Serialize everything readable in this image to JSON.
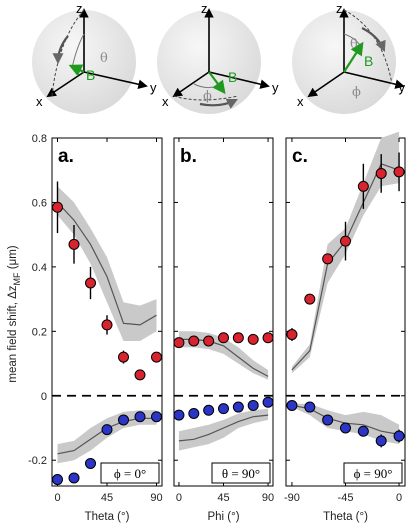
{
  "colors": {
    "red_marker": "#d9232e",
    "blue_marker": "#2b35c6",
    "band": "#c9c9c9",
    "theory_line": "#555555",
    "b_vector": "#1f9a1f",
    "sphere": "#e6e6e6"
  },
  "y_axis_label": "mean field shift, Δz",
  "y_axis_label_sub": "MF",
  "y_axis_label_unit": " (μm)",
  "schematics": [
    {
      "axes": {
        "z": "z",
        "y": "y",
        "x": "x"
      },
      "b_label": "B",
      "angle_label": "θ"
    },
    {
      "axes": {
        "z": "z",
        "y": "y",
        "x": "x"
      },
      "b_label": "B",
      "angle_label": "ϕ"
    },
    {
      "axes": {
        "z": "z",
        "y": "y",
        "x": "x"
      },
      "b_label": "B",
      "angle_label": "θ",
      "angle_label_2": "ϕ"
    }
  ],
  "chart_data": [
    {
      "type": "scatter",
      "panel": "a.",
      "annotation": "ϕ = 0°",
      "xlabel": "Theta (°)",
      "xlim": [
        -5,
        95
      ],
      "ylim": [
        -0.28,
        0.8
      ],
      "xticks": [
        0,
        45,
        90
      ],
      "yticks": [
        -0.2,
        0,
        0.2,
        0.4,
        0.6,
        0.8
      ],
      "ytick_labels": [
        "-0.2",
        "0",
        "0.2",
        "0.4",
        "0.6",
        "0.8"
      ],
      "zero_line": true,
      "series": [
        {
          "marker": "red",
          "x": [
            0,
            15,
            30,
            45,
            60,
            75,
            90
          ],
          "y": [
            0.585,
            0.47,
            0.35,
            0.22,
            0.12,
            0.065,
            0.12
          ],
          "err": [
            0.08,
            0.06,
            0.05,
            0.03,
            0.02,
            0.015,
            0.01
          ]
        },
        {
          "marker": "blue",
          "x": [
            0,
            15,
            30,
            45,
            60,
            75,
            90
          ],
          "y": [
            -0.26,
            -0.255,
            -0.21,
            -0.105,
            -0.075,
            -0.065,
            -0.065
          ],
          "err": [
            0,
            0,
            0,
            0.01,
            0.01,
            0.01,
            0.01
          ]
        }
      ],
      "theory": [
        {
          "x": [
            0,
            15,
            30,
            45,
            60,
            75,
            90
          ],
          "y": [
            0.6,
            0.545,
            0.47,
            0.37,
            0.225,
            0.22,
            0.25
          ],
          "lo": [
            0.56,
            0.5,
            0.41,
            0.29,
            0.17,
            0.17,
            0.2
          ],
          "hi": [
            0.65,
            0.6,
            0.52,
            0.43,
            0.29,
            0.28,
            0.3
          ]
        },
        {
          "x": [
            0,
            15,
            30,
            45,
            60,
            75,
            90
          ],
          "y": [
            -0.18,
            -0.17,
            -0.135,
            -0.1,
            -0.08,
            -0.07,
            -0.07
          ],
          "lo": [
            -0.21,
            -0.2,
            -0.17,
            -0.13,
            -0.1,
            -0.09,
            -0.09
          ],
          "hi": [
            -0.15,
            -0.14,
            -0.1,
            -0.07,
            -0.05,
            -0.045,
            -0.045
          ]
        }
      ]
    },
    {
      "type": "scatter",
      "panel": "b.",
      "annotation": "θ = 90°",
      "xlabel": "Phi (°)",
      "xlim": [
        -5,
        95
      ],
      "ylim": [
        -0.28,
        0.8
      ],
      "xticks": [
        0,
        45,
        90
      ],
      "yticks": [
        -0.2,
        0,
        0.2,
        0.4,
        0.6,
        0.8
      ],
      "zero_line": true,
      "series": [
        {
          "marker": "red",
          "x": [
            0,
            15,
            30,
            45,
            60,
            75,
            90
          ],
          "y": [
            0.165,
            0.17,
            0.17,
            0.18,
            0.18,
            0.175,
            0.18
          ],
          "err": [
            0.01,
            0.01,
            0.01,
            0,
            0,
            0,
            0
          ]
        },
        {
          "marker": "blue",
          "x": [
            0,
            15,
            30,
            45,
            60,
            75,
            90
          ],
          "y": [
            -0.06,
            -0.055,
            -0.045,
            -0.04,
            -0.035,
            -0.03,
            -0.02
          ],
          "err": [
            0,
            0,
            0,
            0,
            0,
            0,
            0
          ]
        }
      ],
      "theory": [
        {
          "x": [
            0,
            15,
            30,
            45,
            60,
            75,
            90
          ],
          "y": [
            0.175,
            0.175,
            0.17,
            0.155,
            0.12,
            0.085,
            0.06
          ],
          "lo": [
            0.15,
            0.15,
            0.145,
            0.13,
            0.1,
            0.07,
            0.05
          ],
          "hi": [
            0.2,
            0.2,
            0.195,
            0.18,
            0.15,
            0.11,
            0.08
          ]
        },
        {
          "x": [
            0,
            15,
            30,
            45,
            60,
            75,
            90
          ],
          "y": [
            -0.14,
            -0.135,
            -0.12,
            -0.1,
            -0.08,
            -0.065,
            -0.06
          ],
          "lo": [
            -0.17,
            -0.16,
            -0.15,
            -0.13,
            -0.1,
            -0.085,
            -0.075
          ],
          "hi": [
            -0.11,
            -0.1,
            -0.09,
            -0.075,
            -0.055,
            -0.045,
            -0.04
          ]
        }
      ]
    },
    {
      "type": "scatter",
      "panel": "c.",
      "annotation": "ϕ = 90°",
      "xlabel": "Theta (°)",
      "xlim": [
        -95,
        5
      ],
      "ylim": [
        -0.28,
        0.8
      ],
      "xticks": [
        -90,
        -45,
        0
      ],
      "yticks": [
        -0.2,
        0,
        0.2,
        0.4,
        0.6,
        0.8
      ],
      "zero_line": true,
      "series": [
        {
          "marker": "red",
          "x": [
            -90,
            -75,
            -60,
            -45,
            -30,
            -15,
            0
          ],
          "y": [
            0.19,
            0.3,
            0.425,
            0.48,
            0.65,
            0.69,
            0.695
          ],
          "err": [
            0.02,
            0,
            0,
            0.06,
            0.07,
            0.06,
            0.06
          ]
        },
        {
          "marker": "blue",
          "x": [
            -90,
            -75,
            -60,
            -45,
            -30,
            -15,
            0
          ],
          "y": [
            -0.03,
            -0.035,
            -0.075,
            -0.1,
            -0.11,
            -0.14,
            -0.125
          ],
          "err": [
            0,
            0,
            0,
            0,
            0,
            0.02,
            0.02
          ]
        }
      ],
      "theory": [
        {
          "x": [
            -90,
            -75,
            -60,
            -45,
            -30,
            -15,
            0
          ],
          "y": [
            0.08,
            0.14,
            0.41,
            0.48,
            0.6,
            0.72,
            0.7
          ],
          "lo": [
            0.07,
            0.12,
            0.35,
            0.44,
            0.56,
            0.65,
            0.66
          ],
          "hi": [
            0.09,
            0.16,
            0.47,
            0.52,
            0.66,
            0.8,
            0.82
          ]
        },
        {
          "x": [
            -90,
            -75,
            -60,
            -45,
            -30,
            -15,
            0
          ],
          "y": [
            -0.03,
            -0.04,
            -0.07,
            -0.085,
            -0.09,
            -0.11,
            -0.12
          ],
          "lo": [
            -0.035,
            -0.06,
            -0.1,
            -0.11,
            -0.12,
            -0.14,
            -0.15
          ],
          "hi": [
            -0.025,
            -0.025,
            -0.045,
            -0.06,
            -0.05,
            -0.06,
            -0.09
          ]
        }
      ]
    }
  ]
}
